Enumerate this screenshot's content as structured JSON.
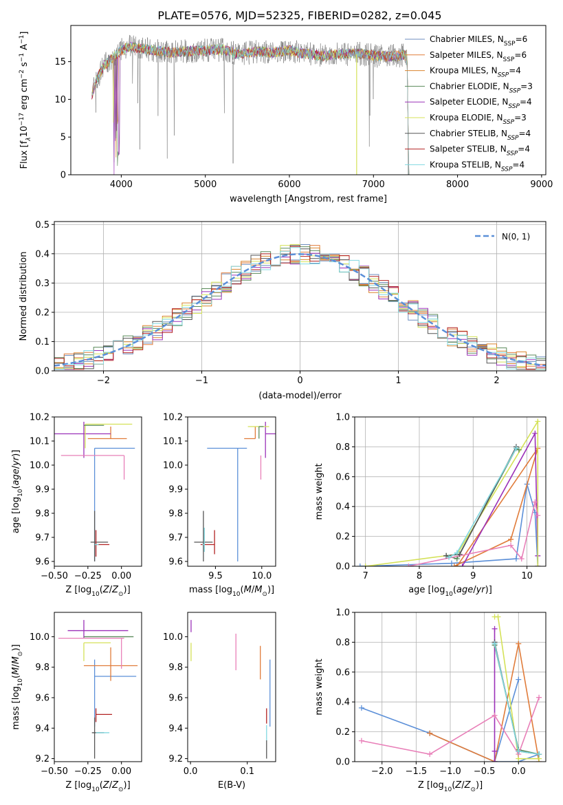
{
  "figure": {
    "title": "PLATE=0576, MJD=52325, FIBERID=0282, z=0.045"
  },
  "series": [
    {
      "name": "Chabrier MILES",
      "nssp": "6",
      "color": "#6c8ebf"
    },
    {
      "name": "Salpeter MILES",
      "nssp": "6",
      "color": "#e07b39"
    },
    {
      "name": "Kroupa MILES",
      "nssp": "4",
      "color": "#d9822b"
    },
    {
      "name": "Chabrier ELODIE",
      "nssp": "3",
      "color": "#5a8a5a"
    },
    {
      "name": "Salpeter ELODIE",
      "nssp": "4",
      "color": "#9b30b8"
    },
    {
      "name": "Kroupa ELODIE",
      "nssp": "3",
      "color": "#d4e157"
    },
    {
      "name": "Chabrier STELIB",
      "nssp": "4",
      "color": "#555555"
    },
    {
      "name": "Salpeter STELIB",
      "nssp": "4",
      "color": "#b22222"
    },
    {
      "name": "Kroupa STELIB",
      "nssp": "4",
      "color": "#80d8e0"
    }
  ],
  "chart_data": [
    {
      "id": "spectrum",
      "type": "line",
      "xlabel": "wavelength [Angstrom, rest frame]",
      "ylabel": "Flux [f",
      "xlim": [
        3400,
        9050
      ],
      "ylim": [
        0,
        19.8
      ],
      "xticks": [
        4000,
        5000,
        6000,
        7000,
        8000,
        9000
      ],
      "yticks": [
        0,
        5,
        10,
        15
      ],
      "data_wavelength": [
        3650,
        3700,
        3800,
        3900,
        4000,
        4100,
        4200,
        4400,
        4600,
        4800,
        5000,
        5200,
        5400,
        5600,
        5800,
        6000,
        6200,
        6400,
        6600,
        6800,
        7000,
        7200,
        7400,
        7420
      ],
      "data_flux": [
        10.5,
        12.5,
        14.5,
        15.5,
        16.5,
        17.0,
        16.8,
        16.5,
        16.2,
        16.4,
        16.5,
        16.6,
        16.0,
        16.3,
        16.2,
        16.5,
        16.0,
        15.8,
        16.0,
        16.1,
        15.8,
        15.7,
        15.9,
        0.5
      ],
      "legend_position": "upper right"
    },
    {
      "id": "residuals",
      "type": "histogram",
      "xlabel": "(data-model)/error",
      "ylabel": "Normed distribution",
      "xlim": [
        -2.5,
        2.5
      ],
      "ylim": [
        0,
        0.51
      ],
      "xticks": [
        -2,
        -1,
        0,
        1,
        2
      ],
      "yticks": [
        0.0,
        0.1,
        0.2,
        0.3,
        0.4,
        0.5
      ],
      "reference_label": "N(0, 1)",
      "reference_color": "#5b8fd8",
      "bin_width": 0.1,
      "legend_position": "upper right",
      "grid": true
    },
    {
      "id": "age_vs_Z",
      "type": "errorbar",
      "xlabel": "Z [log",
      "ylabel": "age  [log",
      "xlim": [
        -0.5,
        0.15
      ],
      "ylim": [
        9.58,
        10.2
      ],
      "xticks": [
        -0.5,
        -0.25,
        0.0
      ],
      "yticks": [
        9.6,
        9.7,
        9.8,
        9.9,
        10.0,
        10.1,
        10.2
      ],
      "points": [
        {
          "x": -0.2,
          "y": 10.07,
          "xerr": [
            0.0,
            0.3
          ],
          "yerr": [
            0.47,
            0.0
          ],
          "color": "#5b8fd8"
        },
        {
          "x": -0.08,
          "y": 10.11,
          "xerr": [
            0.17,
            0.12
          ],
          "yerr": [
            0.0,
            0.05
          ],
          "color": "#e07b39"
        },
        {
          "x": -0.28,
          "y": 10.13,
          "xerr": [
            0.22,
            0.2
          ],
          "yerr": [
            0.1,
            0.05
          ],
          "color": "#9b30b8"
        },
        {
          "x": -0.27,
          "y": 10.17,
          "xerr": [
            0.0,
            0.35
          ],
          "yerr": [
            0.1,
            0.0
          ],
          "color": "#d4e157"
        },
        {
          "x": -0.28,
          "y": 10.165,
          "xerr": [
            0.0,
            0.15
          ],
          "yerr": [
            0.0,
            0.0
          ],
          "color": "#5a8a5a"
        },
        {
          "x": 0.02,
          "y": 10.04,
          "xerr": [
            0.47,
            0.0
          ],
          "yerr": [
            0.1,
            0.0
          ],
          "color": "#e87fb8"
        },
        {
          "x": -0.2,
          "y": 9.68,
          "xerr": [
            0.03,
            0.1
          ],
          "yerr": [
            0.08,
            0.13
          ],
          "color": "#555555"
        },
        {
          "x": -0.19,
          "y": 9.67,
          "xerr": [
            0.0,
            0.1
          ],
          "yerr": [
            0.05,
            0.06
          ],
          "color": "#b22222"
        },
        {
          "x": -0.2,
          "y": 9.67,
          "xerr": [
            0.0,
            0.03
          ],
          "yerr": [
            0.0,
            0.0
          ],
          "color": "#80d8e0"
        }
      ]
    },
    {
      "id": "age_vs_mass",
      "type": "errorbar",
      "xlabel": "mass [log",
      "ylabel": "",
      "xlim": [
        9.2,
        10.15
      ],
      "ylim": [
        9.58,
        10.2
      ],
      "xticks": [
        9.5,
        10.0
      ],
      "yticks": [
        9.6,
        9.7,
        9.8,
        9.9,
        10.0,
        10.1,
        10.2
      ],
      "points": [
        {
          "x": 9.74,
          "y": 10.07,
          "xerr": [
            0.33,
            0.1
          ],
          "yerr": [
            0.47,
            0.0
          ],
          "color": "#5b8fd8"
        },
        {
          "x": 9.93,
          "y": 10.11,
          "xerr": [
            0.12,
            0.0
          ],
          "yerr": [
            0.0,
            0.05
          ],
          "color": "#e07b39"
        },
        {
          "x": 10.04,
          "y": 10.13,
          "xerr": [
            0.0,
            0.12
          ],
          "yerr": [
            0.1,
            0.05
          ],
          "color": "#9b30b8"
        },
        {
          "x": 10.0,
          "y": 10.16,
          "xerr": [
            0.15,
            0.08
          ],
          "yerr": [
            0.0,
            0.0
          ],
          "color": "#d4e157"
        },
        {
          "x": 9.97,
          "y": 10.16,
          "xerr": [
            0.0,
            0.05
          ],
          "yerr": [
            0.05,
            0.0
          ],
          "color": "#5a8a5a"
        },
        {
          "x": 9.99,
          "y": 10.04,
          "xerr": [
            0.0,
            0.0
          ],
          "yerr": [
            0.1,
            0.0
          ],
          "color": "#e87fb8"
        },
        {
          "x": 9.37,
          "y": 9.68,
          "xerr": [
            0.1,
            0.1
          ],
          "yerr": [
            0.08,
            0.13
          ],
          "color": "#555555"
        },
        {
          "x": 9.49,
          "y": 9.67,
          "xerr": [
            0.15,
            0.0
          ],
          "yerr": [
            0.04,
            0.06
          ],
          "color": "#b22222"
        },
        {
          "x": 9.38,
          "y": 9.67,
          "xerr": [
            0.02,
            0.0
          ],
          "yerr": [
            0.03,
            0.07
          ],
          "color": "#80d8e0"
        }
      ]
    },
    {
      "id": "mass_weight_vs_age",
      "type": "line",
      "xlabel": "age  [log",
      "ylabel": "mass weight",
      "xlim": [
        6.8,
        10.35
      ],
      "ylim": [
        0.0,
        1.0
      ],
      "xticks": [
        7,
        8,
        9,
        10
      ],
      "yticks": [
        0.0,
        0.2,
        0.4,
        0.6,
        0.8,
        1.0
      ],
      "grid": true,
      "series": [
        {
          "color": "#5b8fd8",
          "x": [
            6.9,
            8.6,
            9.8,
            10.0,
            10.15,
            10.2
          ],
          "y": [
            0.0,
            0.02,
            0.05,
            0.55,
            0.36,
            0.0
          ]
        },
        {
          "color": "#e07b39",
          "x": [
            8.65,
            9.7,
            10.2,
            8.7
          ],
          "y": [
            0.0,
            0.18,
            0.79,
            0.0
          ]
        },
        {
          "color": "#9b30b8",
          "x": [
            8.8,
            10.15,
            10.2,
            10.2
          ],
          "y": [
            0.0,
            0.89,
            0.07,
            0.0
          ]
        },
        {
          "color": "#d4e157",
          "x": [
            7.0,
            8.7,
            10.2,
            10.2
          ],
          "y": [
            0.0,
            0.08,
            0.97,
            0.0
          ]
        },
        {
          "color": "#5a8a5a",
          "x": [
            8.5,
            8.7,
            9.8,
            9.85
          ],
          "y": [
            0.07,
            0.05,
            0.79,
            0.78
          ]
        },
        {
          "color": "#e87fb8",
          "x": [
            7.8,
            9.7,
            9.9,
            10.15,
            10.2
          ],
          "y": [
            0.0,
            0.14,
            0.05,
            0.43,
            0.34
          ]
        },
        {
          "color": "#555555",
          "x": [
            8.5,
            8.75,
            9.8
          ],
          "y": [
            0.07,
            0.08,
            0.8
          ]
        },
        {
          "color": "#80d8e0",
          "x": [
            8.55,
            8.7,
            9.8
          ],
          "y": [
            0.06,
            0.09,
            0.79
          ]
        }
      ]
    },
    {
      "id": "mass_vs_Z",
      "type": "errorbar",
      "xlabel": "Z [log",
      "ylabel": "mass [log",
      "xlim": [
        -0.5,
        0.15
      ],
      "ylim": [
        9.18,
        10.16
      ],
      "xticks": [
        -0.5,
        -0.25,
        0.0
      ],
      "yticks": [
        9.2,
        9.4,
        9.6,
        9.8,
        10.0
      ],
      "points": [
        {
          "x": -0.2,
          "y": 9.74,
          "xerr": [
            0.0,
            0.31
          ],
          "yerr": [
            0.33,
            0.11
          ],
          "color": "#5b8fd8"
        },
        {
          "x": -0.08,
          "y": 9.81,
          "xerr": [
            0.2,
            0.2
          ],
          "yerr": [
            0.1,
            0.12
          ],
          "color": "#e07b39"
        },
        {
          "x": -0.28,
          "y": 10.04,
          "xerr": [
            0.12,
            0.33
          ],
          "yerr": [
            0.05,
            0.07
          ],
          "color": "#9b30b8"
        },
        {
          "x": -0.28,
          "y": 9.96,
          "xerr": [
            0.0,
            0.2
          ],
          "yerr": [
            0.12,
            0.0
          ],
          "color": "#d4e157"
        },
        {
          "x": -0.28,
          "y": 10.0,
          "xerr": [
            0.0,
            0.37
          ],
          "yerr": [
            0.0,
            0.0
          ],
          "color": "#5a8a5a"
        },
        {
          "x": 0.0,
          "y": 9.99,
          "xerr": [
            0.47,
            0.02
          ],
          "yerr": [
            0.2,
            0.0
          ],
          "color": "#e87fb8"
        },
        {
          "x": -0.2,
          "y": 9.37,
          "xerr": [
            0.02,
            0.07
          ],
          "yerr": [
            0.17,
            0.1
          ],
          "color": "#555555"
        },
        {
          "x": -0.19,
          "y": 9.49,
          "xerr": [
            0.0,
            0.12
          ],
          "yerr": [
            0.05,
            0.04
          ],
          "color": "#b22222"
        },
        {
          "x": -0.19,
          "y": 9.37,
          "xerr": [
            0.0,
            0.1
          ],
          "yerr": [
            0.0,
            0.0
          ],
          "color": "#80d8e0"
        }
      ]
    },
    {
      "id": "mass_vs_EBV",
      "type": "errorbar",
      "xlabel": "E(B-V)",
      "ylabel": "",
      "xlim": [
        -0.005,
        0.15
      ],
      "ylim": [
        9.18,
        10.16
      ],
      "xticks": [
        0.0,
        0.1
      ],
      "yticks": [
        9.2,
        9.4,
        9.6,
        9.8,
        10.0
      ],
      "points": [
        {
          "x": 0.14,
          "y": 9.63,
          "yerr": [
            0.22,
            0.22
          ],
          "color": "#5b8fd8"
        },
        {
          "x": 0.123,
          "y": 9.82,
          "yerr": [
            0.1,
            0.12
          ],
          "color": "#e07b39"
        },
        {
          "x": 0.001,
          "y": 10.05,
          "yerr": [
            0.02,
            0.06
          ],
          "color": "#9b30b8"
        },
        {
          "x": 0.001,
          "y": 9.96,
          "yerr": [
            0.12,
            0.0
          ],
          "color": "#d4e157"
        },
        {
          "x": 0.001,
          "y": 9.98,
          "yerr": [
            0.0,
            0.0
          ],
          "color": "#5a8a5a"
        },
        {
          "x": 0.08,
          "y": 9.9,
          "yerr": [
            0.12,
            0.12
          ],
          "color": "#e87fb8"
        },
        {
          "x": 0.134,
          "y": 9.32,
          "yerr": [
            0.12,
            0.0
          ],
          "color": "#555555"
        },
        {
          "x": 0.134,
          "y": 9.48,
          "yerr": [
            0.05,
            0.05
          ],
          "color": "#b22222"
        },
        {
          "x": 0.134,
          "y": 9.37,
          "yerr": [
            0.05,
            0.05
          ],
          "color": "#80d8e0"
        }
      ]
    },
    {
      "id": "mass_weight_vs_Z",
      "type": "line",
      "xlabel": "Z [log",
      "ylabel": "mass weight",
      "xlim": [
        -2.4,
        0.4
      ],
      "ylim": [
        0.0,
        1.0
      ],
      "xticks": [
        -2.0,
        -1.5,
        -1.0,
        -0.5,
        0.0
      ],
      "yticks": [
        0.0,
        0.2,
        0.4,
        0.6,
        0.8,
        1.0
      ],
      "grid": true,
      "series": [
        {
          "color": "#5b8fd8",
          "x": [
            -2.3,
            -1.3,
            -0.35,
            0.0,
            -0.35,
            0.0,
            0.3
          ],
          "y": [
            0.36,
            0.19,
            0.0,
            0.55,
            0.0,
            0.0,
            0.05
          ]
        },
        {
          "color": "#e07b39",
          "x": [
            -1.3,
            -0.35,
            0.0,
            0.3
          ],
          "y": [
            0.19,
            0.0,
            0.79,
            0.0
          ]
        },
        {
          "color": "#9b30b8",
          "x": [
            -0.35,
            -0.35,
            -0.35,
            -0.35
          ],
          "y": [
            0.0,
            0.89,
            0.07,
            0.0
          ]
        },
        {
          "color": "#d4e157",
          "x": [
            -0.35,
            -0.3,
            0.0,
            0.3
          ],
          "y": [
            0.97,
            0.97,
            0.02,
            0.02
          ]
        },
        {
          "color": "#5a8a5a",
          "x": [
            -0.35,
            -0.35,
            0.0,
            0.3
          ],
          "y": [
            0.79,
            0.78,
            0.08,
            0.05
          ]
        },
        {
          "color": "#e87fb8",
          "x": [
            -2.3,
            -1.3,
            -0.35,
            0.0,
            0.3
          ],
          "y": [
            0.14,
            0.05,
            0.31,
            0.05,
            0.43
          ]
        },
        {
          "color": "#555555",
          "x": [
            -0.35,
            0.0,
            0.3
          ],
          "y": [
            0.8,
            0.07,
            0.05
          ]
        },
        {
          "color": "#80d8e0",
          "x": [
            -0.35,
            0.0,
            0.3
          ],
          "y": [
            0.79,
            0.07,
            0.05
          ]
        }
      ]
    }
  ]
}
